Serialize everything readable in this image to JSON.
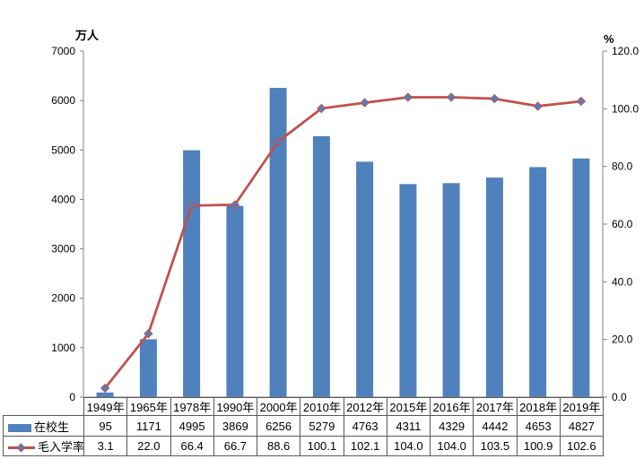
{
  "chart_data": {
    "type": "bar",
    "subtype": "combo-bar-line-with-data-table",
    "categories": [
      "1949年",
      "1965年",
      "1978年",
      "1990年",
      "2000年",
      "2010年",
      "2012年",
      "2015年",
      "2016年",
      "2017年",
      "2018年",
      "2019年"
    ],
    "series": [
      {
        "name": "在校生",
        "type": "bar",
        "axis": "left",
        "color": "#4F81BD",
        "decimals": 0,
        "values": [
          95,
          1171,
          4995,
          3869,
          6256,
          5279,
          4763,
          4311,
          4329,
          4442,
          4653,
          4827
        ]
      },
      {
        "name": "毛入学率",
        "type": "line",
        "axis": "right",
        "color": "#C0504D",
        "marker": "diamond",
        "marker_color": "#4F81BD",
        "decimals": 1,
        "values": [
          3.1,
          22.0,
          66.4,
          66.7,
          88.6,
          100.1,
          102.1,
          104.0,
          104.0,
          103.5,
          100.9,
          102.6
        ]
      }
    ],
    "left_axis": {
      "title": "万人",
      "min": 0,
      "max": 7000,
      "step": 1000,
      "decimals": 0,
      "tick_labels": [
        "0",
        "1000",
        "2000",
        "3000",
        "4000",
        "5000",
        "6000",
        "7000"
      ]
    },
    "right_axis": {
      "title": "%",
      "min": 0,
      "max": 120,
      "step": 20,
      "decimals": 1,
      "tick_labels": [
        "0.0",
        "20.0",
        "40.0",
        "60.0",
        "80.0",
        "100.0",
        "120.0"
      ]
    },
    "title": "",
    "grid": false,
    "legend_position": "data-table-left",
    "data_table": true,
    "axis_color": "#808080",
    "table_border_color": "#595959"
  }
}
